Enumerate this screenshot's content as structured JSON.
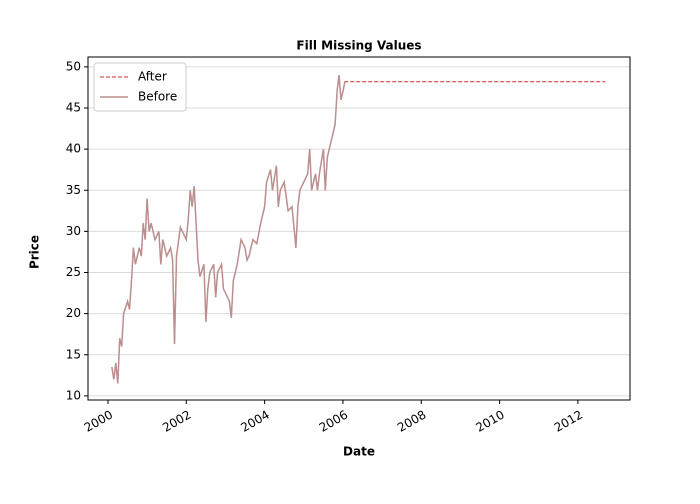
{
  "chart_data": {
    "type": "line",
    "title": "Fill Missing Values",
    "xlabel": "Date",
    "ylabel": "Price",
    "x": [
      2000.1,
      2000.15,
      2000.2,
      2000.25,
      2000.3,
      2000.35,
      2000.4,
      2000.5,
      2000.55,
      2000.6,
      2000.65,
      2000.7,
      2000.8,
      2000.85,
      2000.9,
      2000.95,
      2001.0,
      2001.05,
      2001.1,
      2001.2,
      2001.3,
      2001.35,
      2001.4,
      2001.5,
      2001.6,
      2001.65,
      2001.7,
      2001.75,
      2001.85,
      2001.9,
      2002.0,
      2002.05,
      2002.1,
      2002.15,
      2002.2,
      2002.25,
      2002.3,
      2002.35,
      2002.45,
      2002.5,
      2002.55,
      2002.6,
      2002.7,
      2002.75,
      2002.8,
      2002.9,
      2002.95,
      2003.0,
      2003.1,
      2003.15,
      2003.2,
      2003.3,
      2003.4,
      2003.5,
      2003.55,
      2003.6,
      2003.7,
      2003.8,
      2003.9,
      2004.0,
      2004.05,
      2004.15,
      2004.2,
      2004.3,
      2004.35,
      2004.4,
      2004.5,
      2004.6,
      2004.7,
      2004.8,
      2004.85,
      2004.9,
      2005.0,
      2005.1,
      2005.15,
      2005.2,
      2005.3,
      2005.35,
      2005.4,
      2005.5,
      2005.55,
      2005.6,
      2005.7,
      2005.8,
      2005.85,
      2005.9,
      2005.95,
      2006.0,
      2006.05,
      2012.7
    ],
    "series": [
      {
        "name": "After",
        "color": "#d62728",
        "dashed": true,
        "values": [
          13.5,
          12,
          14,
          11.5,
          17,
          16,
          20,
          21.5,
          20.5,
          24,
          28,
          26,
          28,
          27,
          31,
          29,
          34,
          30,
          31,
          29,
          30,
          26,
          29,
          27,
          28,
          26.5,
          16.3,
          27,
          30.5,
          30,
          29,
          31.5,
          35,
          33,
          35.5,
          31,
          26.5,
          24.5,
          26,
          19,
          23,
          25,
          26,
          22,
          25,
          26,
          23,
          22.5,
          21.5,
          19.5,
          24,
          26,
          29,
          28,
          26.5,
          27,
          29,
          28.5,
          31,
          33,
          36,
          37.5,
          35,
          38,
          33,
          35,
          36,
          32.5,
          33,
          28,
          33,
          35,
          36,
          37,
          40,
          35,
          37,
          35,
          37,
          40,
          35,
          39,
          41,
          43,
          47,
          49,
          46,
          47,
          48.2,
          48.2
        ]
      },
      {
        "name": "Before",
        "color": "#bc8f8f",
        "dashed": false,
        "values": [
          13.5,
          12,
          14,
          11.5,
          17,
          16,
          20,
          21.5,
          20.5,
          24,
          28,
          26,
          28,
          27,
          31,
          29,
          34,
          30,
          31,
          29,
          30,
          26,
          29,
          27,
          28,
          26.5,
          16.3,
          27,
          30.5,
          30,
          29,
          31.5,
          35,
          33,
          35.5,
          31,
          26.5,
          24.5,
          26,
          19,
          23,
          25,
          26,
          22,
          25,
          26,
          23,
          22.5,
          21.5,
          19.5,
          24,
          26,
          29,
          28,
          26.5,
          27,
          29,
          28.5,
          31,
          33,
          36,
          37.5,
          35,
          38,
          33,
          35,
          36,
          32.5,
          33,
          28,
          33,
          35,
          36,
          37,
          40,
          35,
          37,
          35,
          37,
          40,
          35,
          39,
          41,
          43,
          47,
          49,
          46,
          47,
          48.2,
          null
        ]
      }
    ],
    "xlim": [
      1999.49,
      2013.33
    ],
    "xticks": [
      2000,
      2002,
      2004,
      2006,
      2008,
      2010,
      2012
    ],
    "ylim": [
      9.5,
      51.2
    ],
    "yticks": [
      10,
      15,
      20,
      25,
      30,
      35,
      40,
      45,
      50
    ],
    "grid": true,
    "legend": "upper left"
  }
}
